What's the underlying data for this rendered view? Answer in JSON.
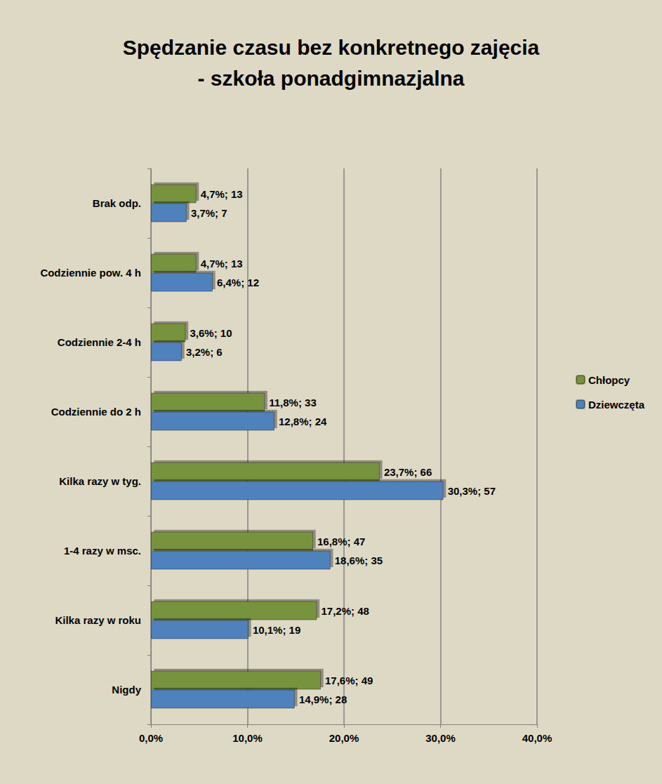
{
  "chart_data": {
    "type": "bar",
    "title": "Spędzanie czasu bez konkretnego zajęcia\n- szkoła ponadgimnazjalna",
    "orientation": "horizontal",
    "categories": [
      "Nigdy",
      "Kilka razy w roku",
      "1-4 razy w msc.",
      "Kilka razy w tyg.",
      "Codziennie do 2 h",
      "Codziennie 2-4 h",
      "Codziennie pow. 4 h",
      "Brak odp."
    ],
    "series": [
      {
        "name": "Chłopcy",
        "color": "#77933c",
        "values": [
          17.6,
          17.2,
          16.8,
          23.7,
          11.8,
          3.6,
          4.7,
          4.7
        ],
        "value_labels": [
          "17,6%; 49",
          "17,2%; 48",
          "16,8%; 47",
          "23,7%; 66",
          "11,8%; 33",
          "3,6%; 10",
          "4,7%; 13",
          "4,7%; 13"
        ]
      },
      {
        "name": "Dziewczęta",
        "color": "#4f81bd",
        "values": [
          14.9,
          10.1,
          18.6,
          30.3,
          12.8,
          3.2,
          6.4,
          3.7
        ],
        "value_labels": [
          "14,9%; 28",
          "10,1%; 19",
          "18,6%; 35",
          "30,3%; 57",
          "12,8%; 24",
          "3,2%; 6",
          "6,4%; 12",
          "3,7%; 7"
        ]
      }
    ],
    "xlim": [
      0,
      40
    ],
    "xticks": [
      {
        "value": 0,
        "label": "0,0%"
      },
      {
        "value": 10,
        "label": "10,0%"
      },
      {
        "value": 20,
        "label": "20,0%"
      },
      {
        "value": 30,
        "label": "30,0%"
      },
      {
        "value": 40,
        "label": "40,0%"
      }
    ],
    "grid": true,
    "legend": "right",
    "data_labels": true
  }
}
